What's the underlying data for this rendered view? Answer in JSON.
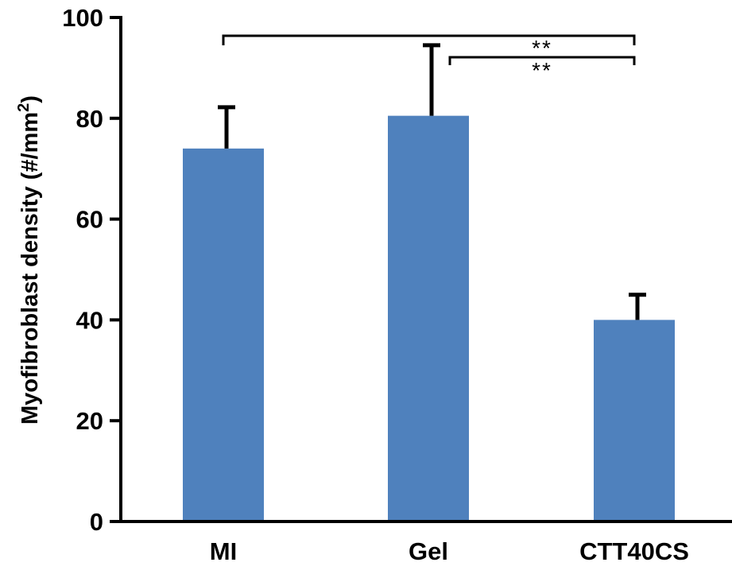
{
  "chart_data": {
    "type": "bar",
    "categories": [
      "MI",
      "Gel",
      "CTT40CS"
    ],
    "values": [
      74,
      80.5,
      40
    ],
    "errors": [
      8.2,
      14,
      5
    ],
    "ylabel": "Myofibroblast density (#/mm",
    "ylabel_sup": "2",
    "ylabel_end": ")",
    "ylim": [
      0,
      100
    ],
    "yticks": [
      "0",
      "20",
      "40",
      "60",
      "80",
      "100"
    ],
    "ytick_values": [
      0,
      20,
      40,
      60,
      80,
      100
    ],
    "bar_color": "#4F81BD",
    "grid": false,
    "significance": [
      {
        "from": "MI",
        "to": "CTT40CS",
        "label": "**"
      },
      {
        "from": "Gel",
        "to": "CTT40CS",
        "label": "**"
      }
    ]
  }
}
